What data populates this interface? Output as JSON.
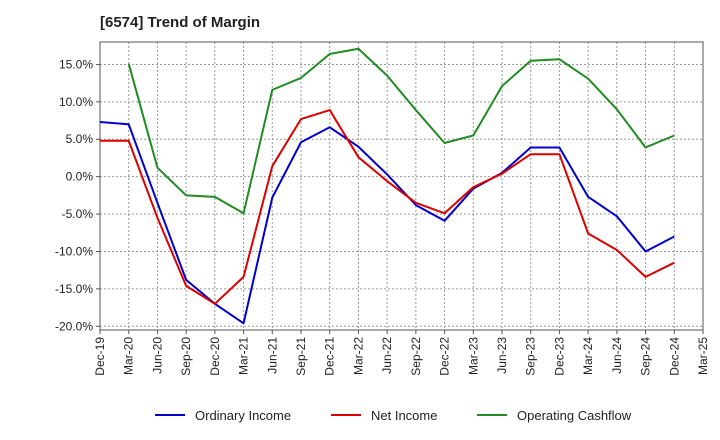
{
  "chart_data": {
    "type": "line",
    "title": "[6574]  Trend of Margin",
    "xlabel": "",
    "ylabel": "",
    "x": [
      "Dec-19",
      "Mar-20",
      "Jun-20",
      "Sep-20",
      "Dec-20",
      "Mar-21",
      "Jun-21",
      "Sep-21",
      "Dec-21",
      "Mar-22",
      "Jun-22",
      "Sep-22",
      "Dec-22",
      "Mar-23",
      "Jun-23",
      "Sep-23",
      "Dec-23",
      "Mar-24",
      "Jun-24",
      "Sep-24",
      "Dec-24",
      "Mar-25"
    ],
    "ylim": [
      -20.5,
      18.0
    ],
    "yticks": [
      15.0,
      10.0,
      5.0,
      0.0,
      -5.0,
      -10.0,
      -15.0,
      -20.0
    ],
    "ytick_labels": [
      "15.0%",
      "10.0%",
      "5.0%",
      "0.0%",
      "-5.0%",
      "-10.0%",
      "-15.0%",
      "-20.0%"
    ],
    "grid": true,
    "legend_position": "bottom",
    "series": [
      {
        "name": "Ordinary Income",
        "color": "#0000cc",
        "values": [
          7.3,
          7.0,
          -3.5,
          -13.8,
          -17.0,
          -19.6,
          -2.8,
          4.6,
          6.6,
          4.0,
          0.3,
          -3.8,
          -5.9,
          -1.6,
          0.5,
          3.9,
          3.9,
          -2.7,
          -5.3,
          -10.0,
          -8.0,
          null
        ]
      },
      {
        "name": "Net Income",
        "color": "#dd0000",
        "values": [
          4.8,
          4.8,
          -5.5,
          -14.6,
          -17.0,
          -13.4,
          1.4,
          7.7,
          8.9,
          2.6,
          -0.6,
          -3.5,
          -4.9,
          -1.4,
          0.4,
          3.0,
          3.0,
          -7.6,
          -9.8,
          -13.4,
          -11.5,
          null
        ]
      },
      {
        "name": "Operating Cashflow",
        "color": "#228b22",
        "values": [
          null,
          15.1,
          1.2,
          -2.5,
          -2.7,
          -4.9,
          11.6,
          13.2,
          16.4,
          17.1,
          13.5,
          8.9,
          4.5,
          5.5,
          12.1,
          15.5,
          15.7,
          13.1,
          9.0,
          3.9,
          5.5,
          null
        ]
      }
    ]
  }
}
